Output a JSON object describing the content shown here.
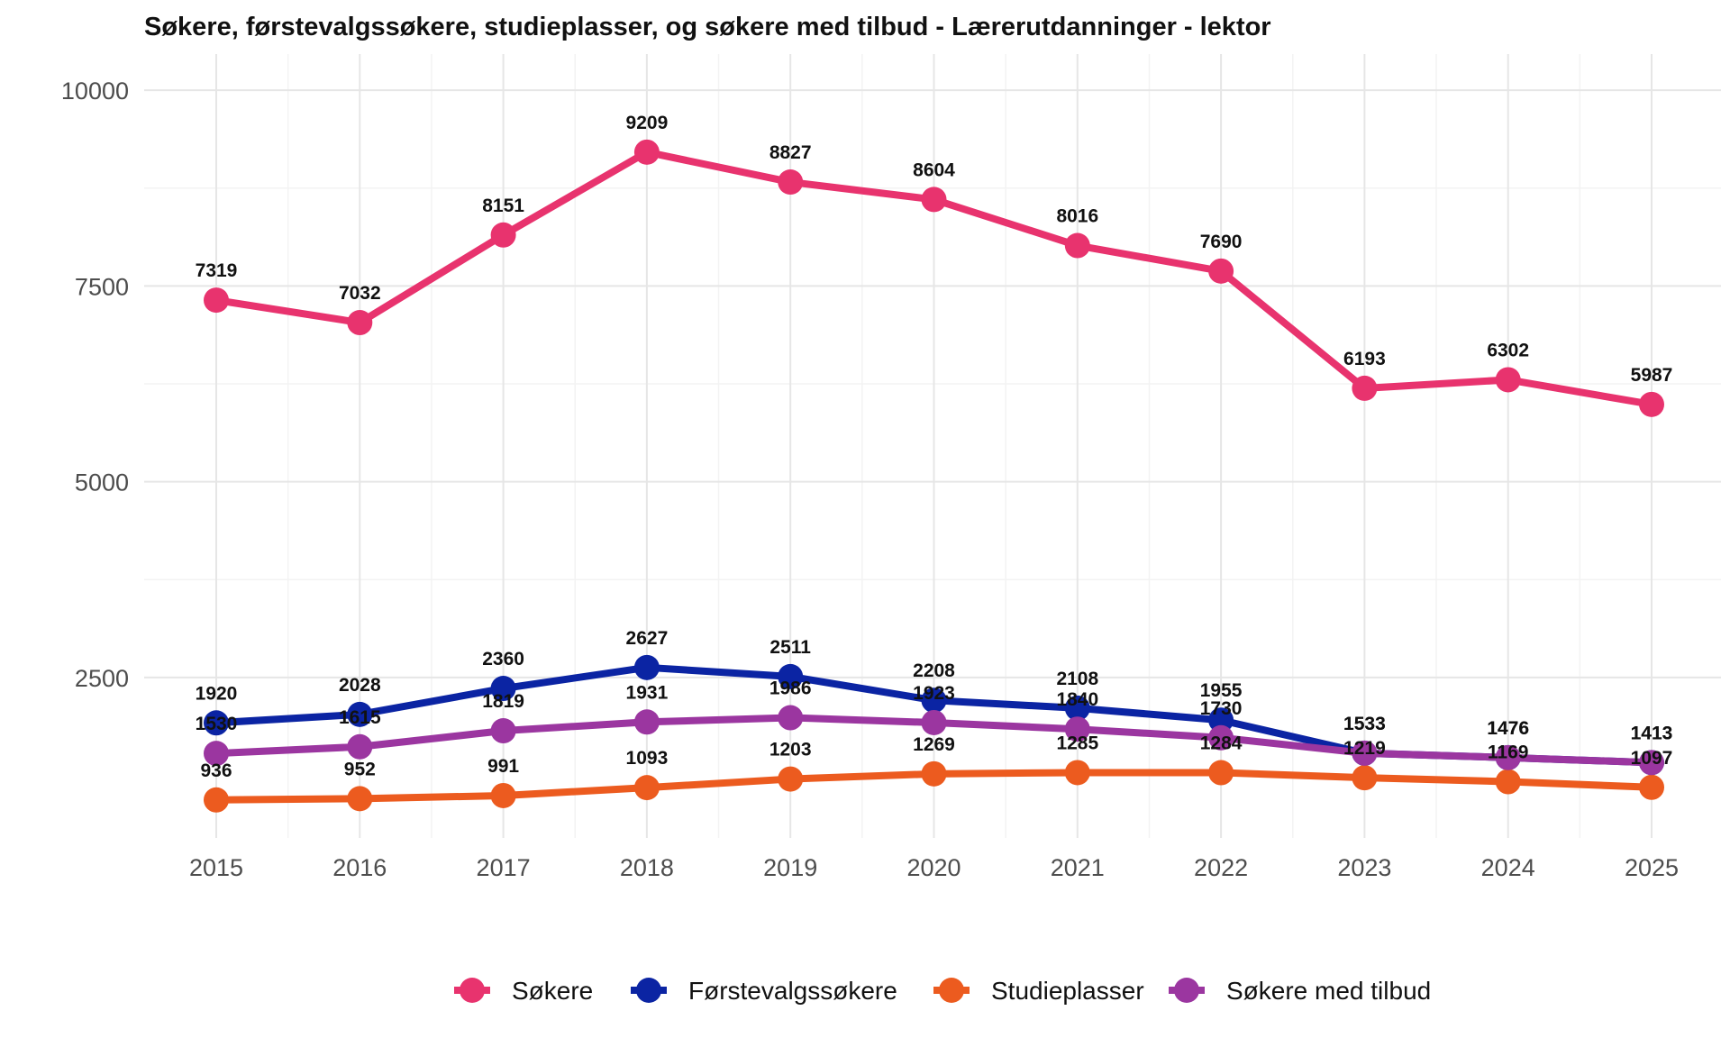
{
  "chart_data": {
    "type": "line",
    "title": "Søkere, førstevalgssøkere, studieplasser, og søkere med tilbud - Lærerutdanninger - lektor",
    "x": [
      "2015",
      "2016",
      "2017",
      "2018",
      "2019",
      "2020",
      "2021",
      "2022",
      "2023",
      "2024",
      "2025"
    ],
    "xlabel": "",
    "ylabel": "",
    "ylim": [
      0,
      10500
    ],
    "y_ticks": [
      2500,
      5000,
      7500,
      10000
    ],
    "y_tick_labels": [
      "2500",
      "5000",
      "7500",
      "10000"
    ],
    "grid": true,
    "legend_position": "bottom",
    "series": [
      {
        "name": "Søkere",
        "color": "#e8336e",
        "values": [
          7319,
          7032,
          8151,
          9209,
          8827,
          8604,
          8016,
          7690,
          6193,
          6302,
          5987
        ]
      },
      {
        "name": "Førstevalgssøkere",
        "color": "#0b24a3",
        "values": [
          1920,
          2028,
          2360,
          2627,
          2511,
          2208,
          2108,
          1955,
          1533,
          1476,
          1413
        ]
      },
      {
        "name": "Studieplasser",
        "color": "#ec5b1f",
        "values": [
          936,
          952,
          991,
          1093,
          1203,
          1269,
          1285,
          1284,
          1219,
          1169,
          1097
        ]
      },
      {
        "name": "Søkere med tilbud",
        "color": "#9b36a0",
        "values": [
          1530,
          1615,
          1819,
          1931,
          1986,
          1923,
          1840,
          1730,
          1533,
          1476,
          1413
        ]
      }
    ]
  }
}
